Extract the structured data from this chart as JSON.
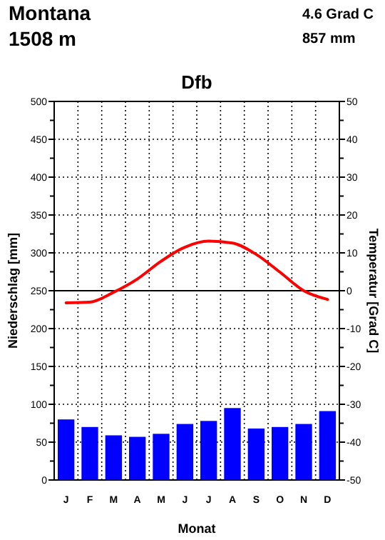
{
  "chart_data": {
    "type": "bar",
    "title": "Dfb",
    "xlabel": "Monat",
    "ylabel": "Niederschlag [mm]",
    "y2label": "Temperatur [Grad C]",
    "annotations": [
      "Montana",
      "1508 m",
      "4.6 Grad C",
      "857 mm"
    ],
    "categories": [
      "J",
      "F",
      "M",
      "A",
      "M",
      "J",
      "J",
      "A",
      "S",
      "O",
      "N",
      "D"
    ],
    "series": [
      {
        "color": "#0000ff",
        "values": [
          80,
          70,
          59,
          57,
          61,
          74,
          78,
          95,
          68,
          70,
          74,
          91
        ]
      },
      {
        "type": "line",
        "axis": "y2",
        "color": "#ff0000",
        "values": [
          -3.2,
          -3.0,
          -0.4,
          3.1,
          7.8,
          11.5,
          13.1,
          12.6,
          9.6,
          4.9,
          0,
          -2.3
        ]
      }
    ],
    "ylim": [
      0,
      500
    ],
    "yticks": [
      0,
      {
        "value": 25,
        "label": null
      },
      50,
      {
        "value": 75,
        "label": null
      },
      100,
      {
        "value": 125,
        "label": null
      },
      150,
      {
        "value": 175,
        "label": null
      },
      200,
      {
        "value": 225,
        "label": null
      },
      250,
      {
        "value": 275,
        "label": null
      },
      300,
      {
        "value": 325,
        "label": null
      },
      350,
      {
        "value": 375,
        "label": null
      },
      400,
      {
        "value": 425,
        "label": null
      },
      450,
      {
        "value": 475,
        "label": null
      },
      500
    ],
    "y2lim": [
      -50,
      50
    ],
    "y2ticks": [
      -50,
      {
        "value": -45,
        "label": null
      },
      -40,
      {
        "value": -35,
        "label": null
      },
      -30,
      {
        "value": -25,
        "label": null
      },
      -20,
      {
        "value": -15,
        "label": null
      },
      -10,
      {
        "value": -5,
        "label": null
      },
      0,
      {
        "value": 5,
        "label": null
      },
      10,
      {
        "value": 15,
        "label": null
      },
      20,
      {
        "value": 25,
        "label": null
      },
      30,
      {
        "value": 35,
        "label": null
      },
      40,
      {
        "value": 45,
        "label": null
      },
      50
    ],
    "ref_lines": [
      {
        "axis": "y2",
        "value": 0,
        "color": "#000000",
        "line_style": "solid"
      }
    ],
    "grid": true
  }
}
